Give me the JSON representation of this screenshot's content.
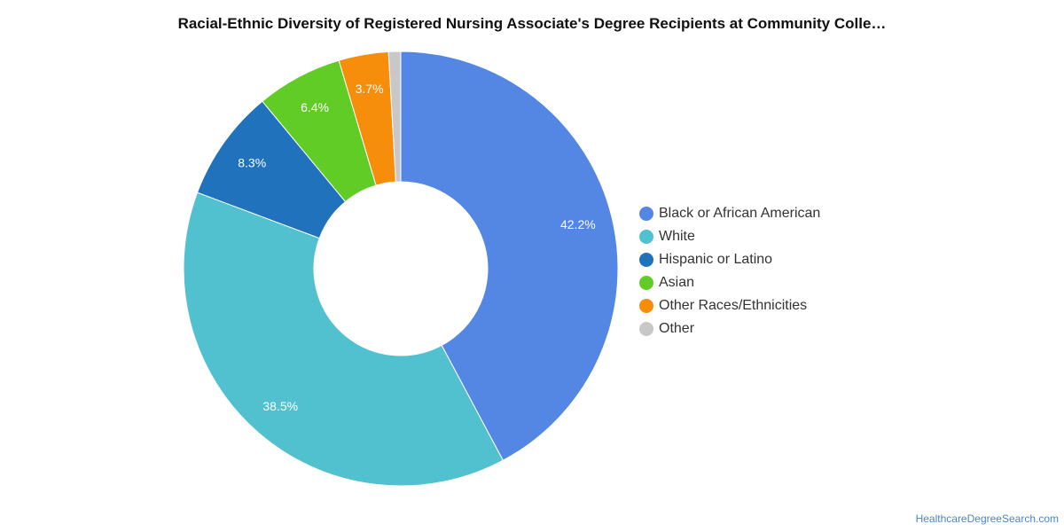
{
  "chart_data": {
    "type": "pie",
    "title": "Racial-Ethnic Diversity of Registered Nursing Associate's Degree Recipients at Community Colle…",
    "donut": true,
    "legend_position": "right",
    "series": [
      {
        "name": "Black or African American",
        "value": 42.2,
        "label": "42.2%",
        "color": "#5486e3"
      },
      {
        "name": "White",
        "value": 38.5,
        "label": "38.5%",
        "color": "#52c1cf"
      },
      {
        "name": "Hispanic or Latino",
        "value": 8.3,
        "label": "8.3%",
        "color": "#1f72bb"
      },
      {
        "name": "Asian",
        "value": 6.4,
        "label": "6.4%",
        "color": "#62cc27"
      },
      {
        "name": "Other Races/Ethnicities",
        "value": 3.7,
        "label": "3.7%",
        "color": "#f78e0b"
      },
      {
        "name": "Other",
        "value": 0.9,
        "label": "",
        "color": "#c8c8c8"
      }
    ]
  },
  "footer": {
    "credit": "HealthcareDegreeSearch.com"
  }
}
